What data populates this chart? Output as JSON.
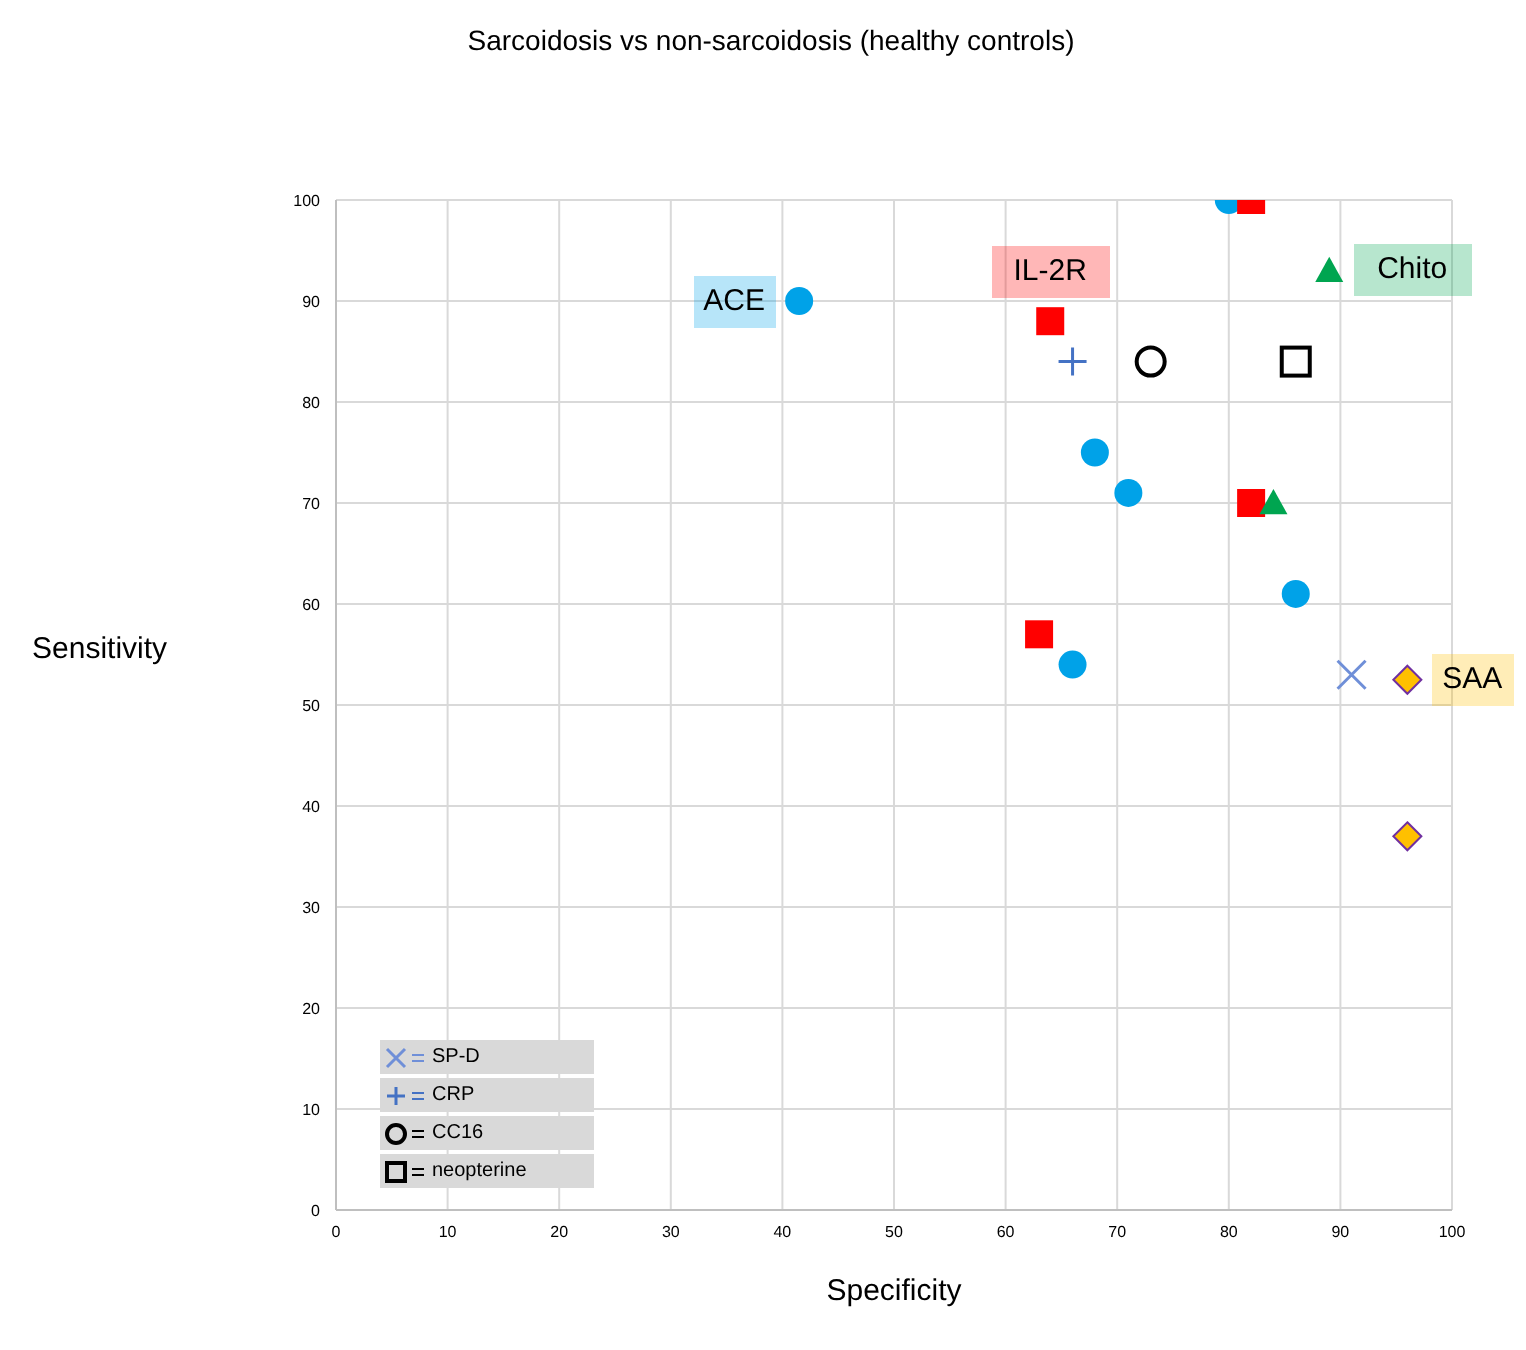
{
  "chart_data": {
    "type": "scatter",
    "title": "Sarcoidosis vs non-sarcoidosis (healthy controls)",
    "xlabel": "Specificity",
    "ylabel": "Sensitivity",
    "xlim": [
      0,
      100
    ],
    "xticks": [
      0,
      10,
      20,
      30,
      40,
      50,
      60,
      70,
      80,
      90,
      100
    ],
    "ylim": [
      0,
      100
    ],
    "yticks": [
      0,
      10,
      20,
      30,
      40,
      50,
      60,
      70,
      80,
      90,
      100
    ],
    "grid": true,
    "legend": "bottom left",
    "series": [
      {
        "name": "ACE",
        "color": "#00a2e8",
        "marker": "circle",
        "x": [
          41.5,
          80,
          68,
          71,
          86,
          66
        ],
        "values": [
          90,
          100,
          75,
          71,
          61,
          54
        ]
      },
      {
        "name": "IL-2R",
        "color": "#ff0000",
        "marker": "square",
        "x": [
          82,
          64,
          82,
          63
        ],
        "values": [
          100,
          88,
          70,
          57
        ]
      },
      {
        "name": "Chito",
        "color": "#00a550",
        "marker": "triangle",
        "x": [
          89,
          84
        ],
        "values": [
          93,
          70
        ]
      },
      {
        "name": "SAA",
        "color": "#ffc000",
        "marker": "diamond",
        "x": [
          96,
          96
        ],
        "values": [
          52.5,
          37
        ]
      },
      {
        "name": "SP-D",
        "color": "#6f8fd8",
        "marker": "cross",
        "x": [
          91
        ],
        "values": [
          53
        ]
      },
      {
        "name": "CRP",
        "color": "#4472c4",
        "marker": "plus",
        "x": [
          66
        ],
        "values": [
          84
        ]
      },
      {
        "name": "CC16",
        "color": "#000000",
        "marker": "circle-open",
        "x": [
          73
        ],
        "values": [
          84
        ]
      },
      {
        "name": "neopterine",
        "color": "#000000",
        "marker": "square-open",
        "x": [
          86
        ],
        "values": [
          84
        ]
      }
    ]
  }
}
